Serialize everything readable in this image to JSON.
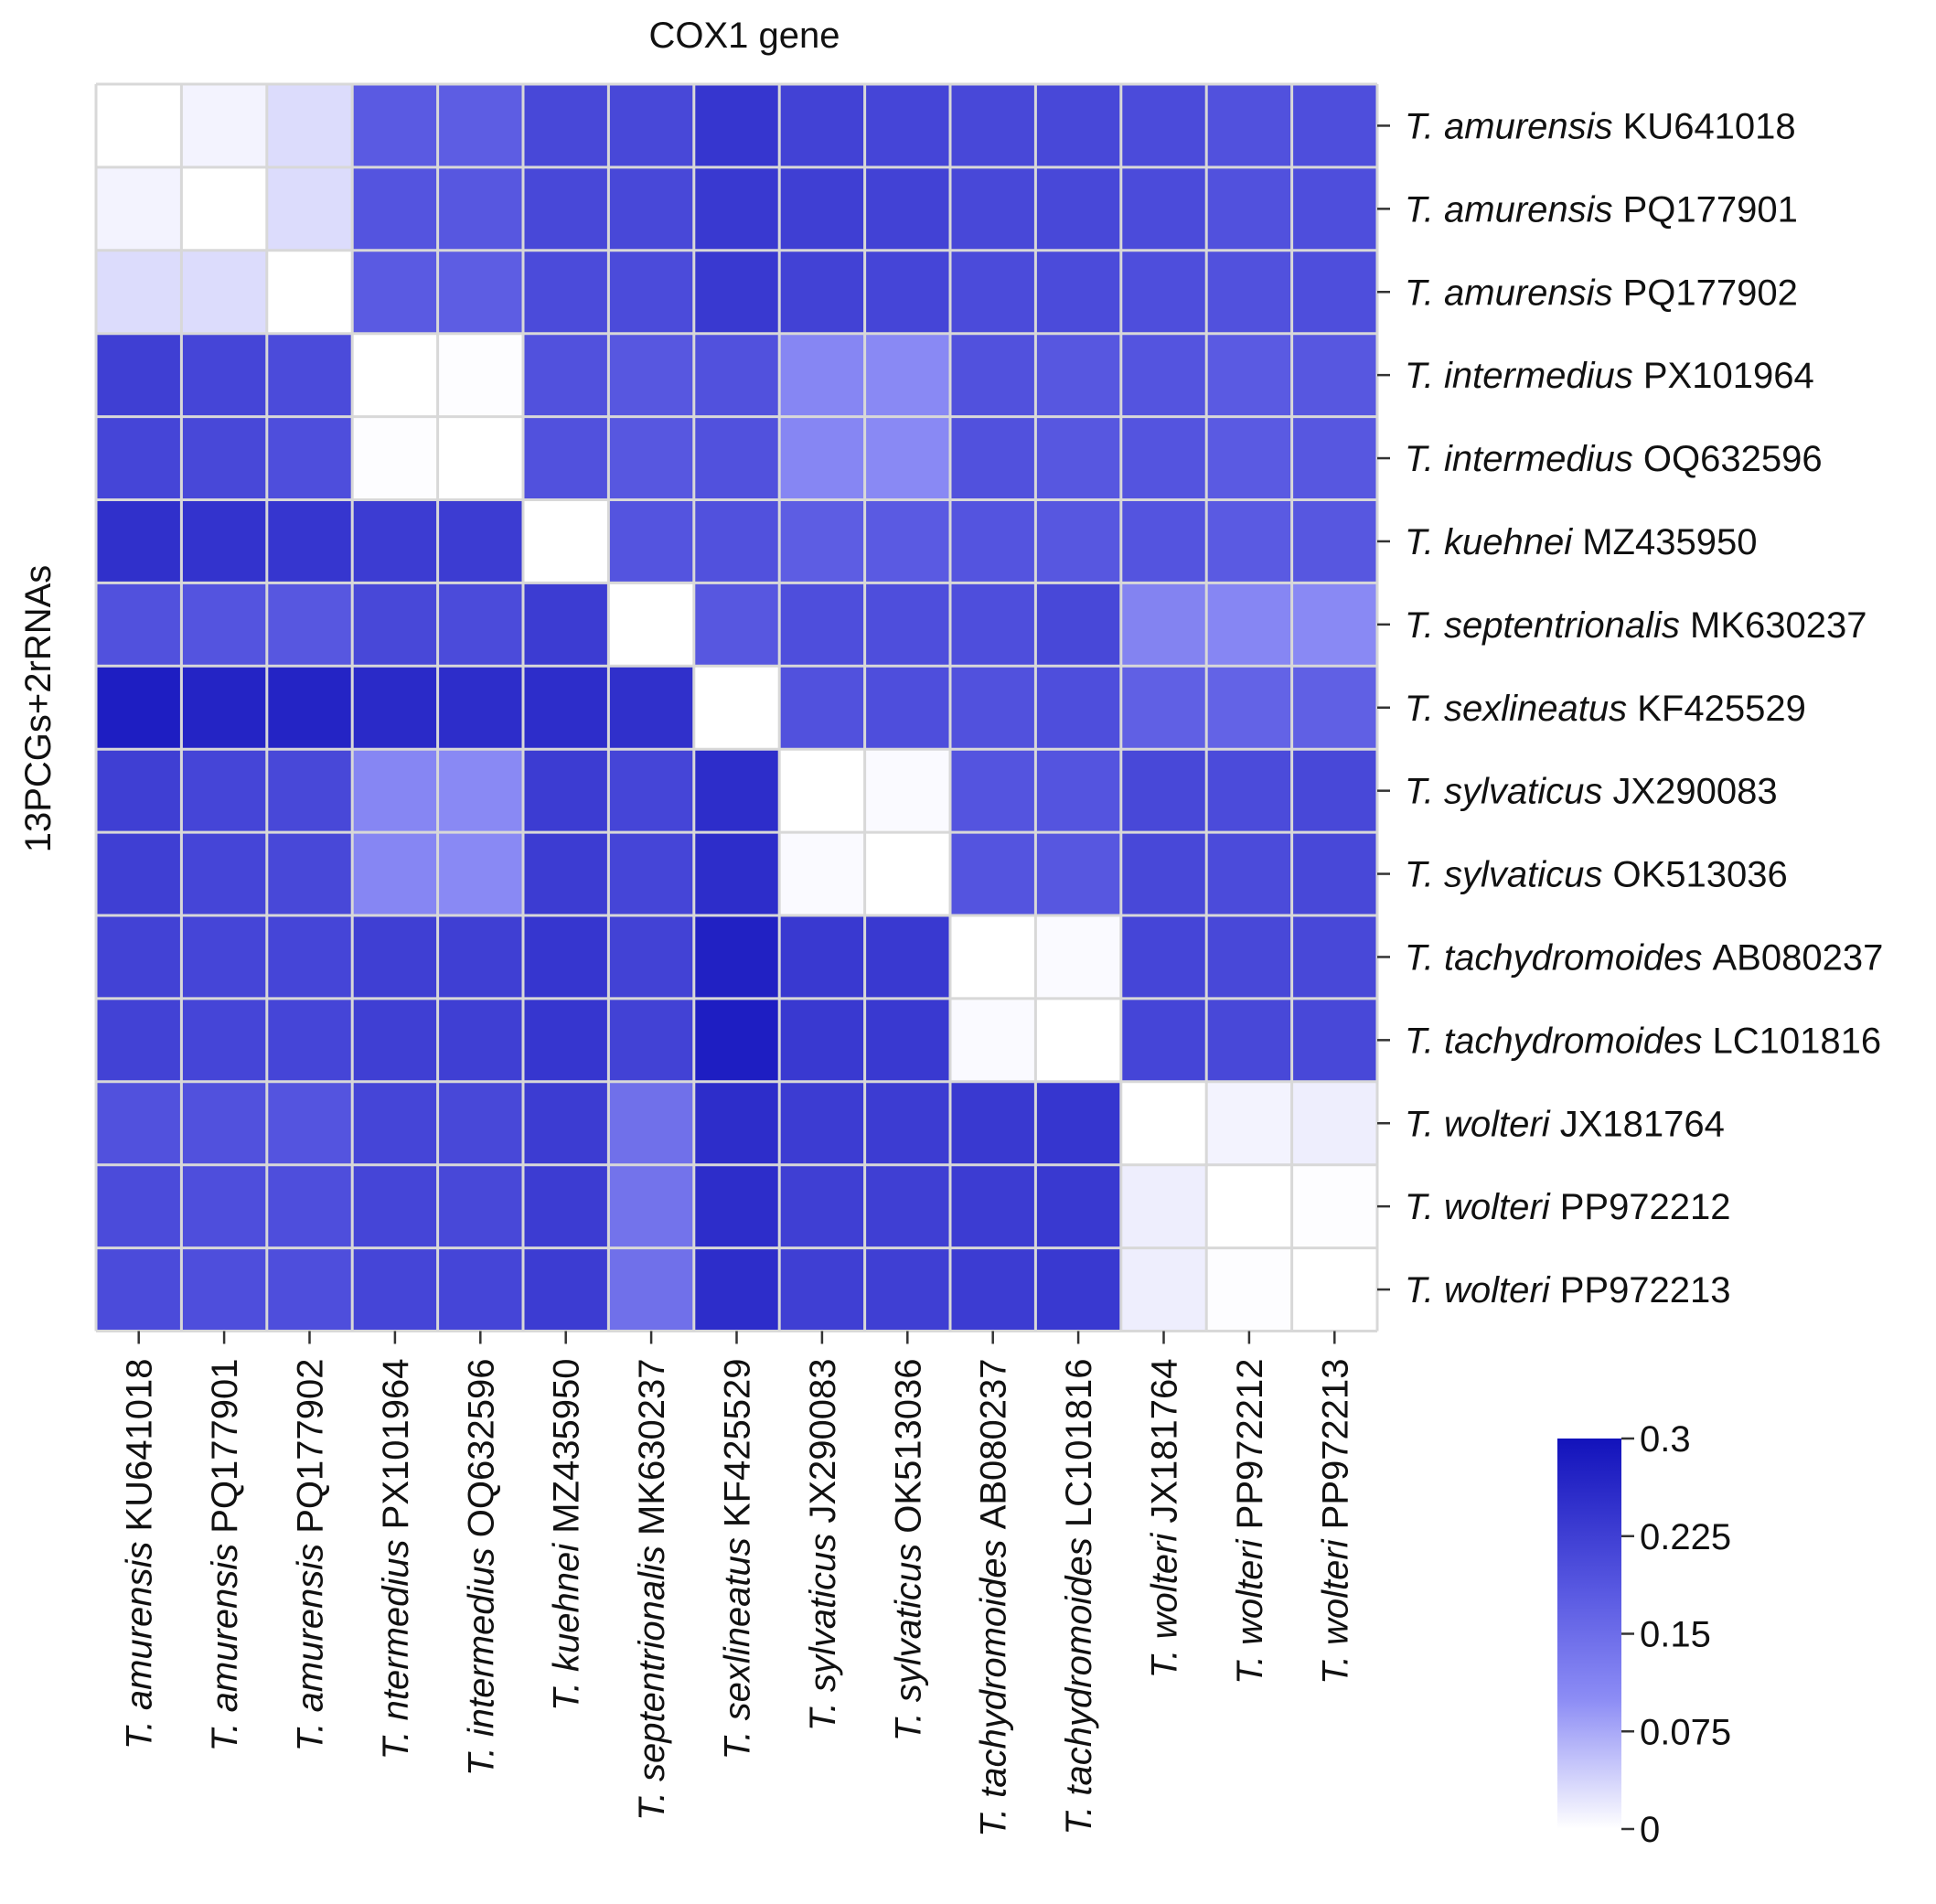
{
  "chart_data": {
    "type": "heatmap",
    "title": "COX1 gene",
    "ylabel": "13PCGs+2rRNAs",
    "xlabel": "",
    "row_labels": [
      {
        "genus": "T.",
        "species": "amurensis",
        "accession": "KU641018"
      },
      {
        "genus": "T.",
        "species": "amurensis",
        "accession": "PQ177901"
      },
      {
        "genus": "T.",
        "species": "amurensis",
        "accession": "PQ177902"
      },
      {
        "genus": "T.",
        "species": "intermedius",
        "accession": "PX101964"
      },
      {
        "genus": "T.",
        "species": "intermedius",
        "accession": "OQ632596"
      },
      {
        "genus": "T.",
        "species": "kuehnei",
        "accession": "MZ435950"
      },
      {
        "genus": "T.",
        "species": "septentrionalis",
        "accession": "MK630237"
      },
      {
        "genus": "T.",
        "species": "sexlineatus",
        "accession": "KF425529"
      },
      {
        "genus": "T.",
        "species": "sylvaticus",
        "accession": "JX290083"
      },
      {
        "genus": "T.",
        "species": "sylvaticus",
        "accession": "OK513036"
      },
      {
        "genus": "T.",
        "species": "tachydromoides",
        "accession": "AB080237"
      },
      {
        "genus": "T.",
        "species": "tachydromoides",
        "accession": "LC101816"
      },
      {
        "genus": "T.",
        "species": "wolteri",
        "accession": "JX181764"
      },
      {
        "genus": "T.",
        "species": "wolteri",
        "accession": "PP972212"
      },
      {
        "genus": "T.",
        "species": "wolteri",
        "accession": "PP972213"
      }
    ],
    "col_labels": [
      {
        "genus": "T.",
        "species": "amurensis",
        "accession": "KU641018"
      },
      {
        "genus": "T.",
        "species": "amurensis",
        "accession": "PQ177901"
      },
      {
        "genus": "T.",
        "species": "amurensis",
        "accession": "PQ177902"
      },
      {
        "genus": "T.",
        "species": "ntermedius",
        "accession": "PX101964"
      },
      {
        "genus": "T.",
        "species": "intermedius",
        "accession": "OQ632596"
      },
      {
        "genus": "T.",
        "species": "kuehnei",
        "accession": "MZ435950"
      },
      {
        "genus": "T.",
        "species": "septentrionalis",
        "accession": "MK630237"
      },
      {
        "genus": "T.",
        "species": "sexlineatus",
        "accession": "KF425529"
      },
      {
        "genus": "T.",
        "species": "sylvaticus",
        "accession": "JX290083"
      },
      {
        "genus": "T.",
        "species": "sylvaticus",
        "accession": "OK513036"
      },
      {
        "genus": "T.",
        "species": "tachydromoides",
        "accession": "AB080237"
      },
      {
        "genus": "T.",
        "species": "tachydromoides",
        "accession": "LC101816"
      },
      {
        "genus": "T.",
        "species": "wolteri",
        "accession": "JX181764"
      },
      {
        "genus": "T.",
        "species": "wolteri",
        "accession": "PP972212"
      },
      {
        "genus": "T.",
        "species": "wolteri",
        "accession": "PP972213"
      }
    ],
    "values": [
      [
        0.0,
        0.01,
        0.03,
        0.18,
        0.175,
        0.21,
        0.21,
        0.24,
        0.22,
        0.215,
        0.21,
        0.21,
        0.205,
        0.195,
        0.2
      ],
      [
        0.01,
        0.0,
        0.03,
        0.19,
        0.185,
        0.21,
        0.21,
        0.235,
        0.225,
        0.22,
        0.21,
        0.21,
        0.205,
        0.195,
        0.2
      ],
      [
        0.03,
        0.03,
        0.0,
        0.18,
        0.175,
        0.205,
        0.205,
        0.235,
        0.22,
        0.215,
        0.205,
        0.205,
        0.2,
        0.195,
        0.2
      ],
      [
        0.225,
        0.215,
        0.205,
        0.0,
        0.002,
        0.195,
        0.185,
        0.195,
        0.11,
        0.105,
        0.195,
        0.185,
        0.19,
        0.18,
        0.185
      ],
      [
        0.215,
        0.21,
        0.2,
        0.002,
        0.0,
        0.195,
        0.185,
        0.195,
        0.11,
        0.105,
        0.195,
        0.185,
        0.19,
        0.18,
        0.185
      ],
      [
        0.25,
        0.245,
        0.24,
        0.23,
        0.23,
        0.0,
        0.19,
        0.195,
        0.175,
        0.18,
        0.19,
        0.185,
        0.19,
        0.18,
        0.185
      ],
      [
        0.195,
        0.19,
        0.185,
        0.21,
        0.205,
        0.23,
        0.0,
        0.185,
        0.2,
        0.2,
        0.2,
        0.21,
        0.115,
        0.11,
        0.105
      ],
      [
        0.28,
        0.27,
        0.27,
        0.26,
        0.255,
        0.255,
        0.25,
        0.0,
        0.195,
        0.2,
        0.195,
        0.2,
        0.17,
        0.165,
        0.17
      ],
      [
        0.225,
        0.215,
        0.21,
        0.11,
        0.105,
        0.23,
        0.215,
        0.255,
        0.0,
        0.004,
        0.19,
        0.19,
        0.21,
        0.205,
        0.21
      ],
      [
        0.225,
        0.215,
        0.21,
        0.11,
        0.105,
        0.23,
        0.215,
        0.255,
        0.004,
        0.0,
        0.19,
        0.185,
        0.21,
        0.205,
        0.21
      ],
      [
        0.22,
        0.215,
        0.215,
        0.225,
        0.225,
        0.24,
        0.22,
        0.275,
        0.235,
        0.235,
        0.0,
        0.004,
        0.215,
        0.21,
        0.21
      ],
      [
        0.22,
        0.215,
        0.215,
        0.225,
        0.225,
        0.24,
        0.22,
        0.28,
        0.235,
        0.235,
        0.004,
        0.0,
        0.215,
        0.21,
        0.21
      ],
      [
        0.195,
        0.195,
        0.19,
        0.215,
        0.21,
        0.23,
        0.145,
        0.255,
        0.23,
        0.23,
        0.235,
        0.24,
        0.0,
        0.01,
        0.015
      ],
      [
        0.205,
        0.2,
        0.2,
        0.215,
        0.21,
        0.23,
        0.14,
        0.255,
        0.225,
        0.225,
        0.23,
        0.235,
        0.015,
        0.0,
        0.002
      ],
      [
        0.205,
        0.2,
        0.2,
        0.215,
        0.215,
        0.23,
        0.145,
        0.255,
        0.225,
        0.225,
        0.23,
        0.235,
        0.015,
        0.002,
        0.0
      ]
    ],
    "colorbar": {
      "min": 0,
      "max": 0.3,
      "ticks": [
        0,
        0.075,
        0.15,
        0.225,
        0.3
      ],
      "tick_labels": [
        "0",
        "0.075",
        "0.15",
        "0.225",
        "0.3"
      ],
      "colors": [
        "#ffffff",
        "#8c8cf5",
        "#5a5ae2",
        "#1212bb"
      ]
    },
    "grid_color": "#d8d8d8"
  }
}
